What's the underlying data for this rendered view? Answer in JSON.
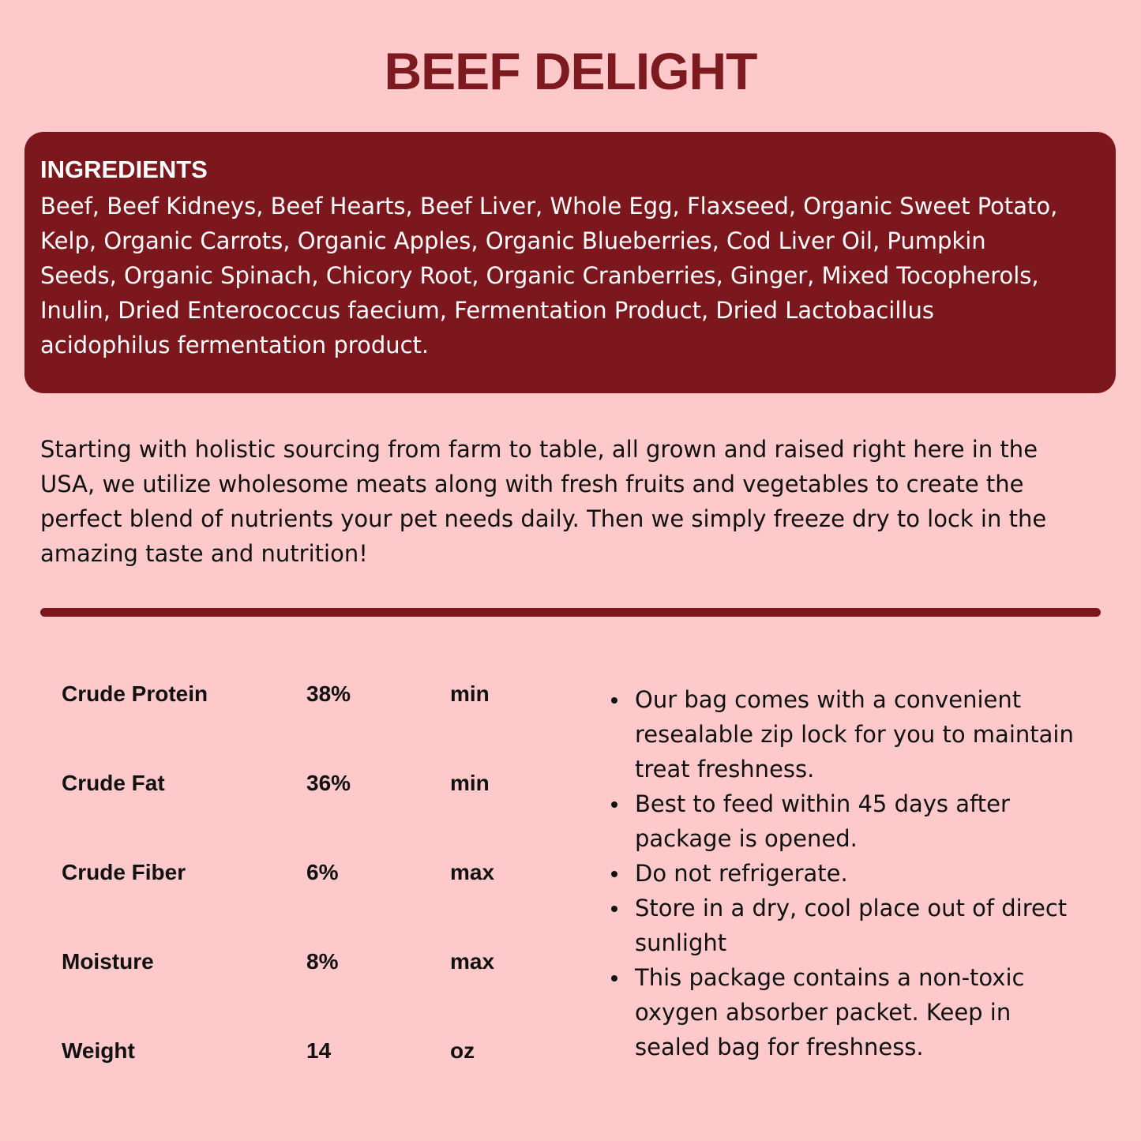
{
  "title": "BEEF DELIGHT",
  "ingredients": {
    "heading": "INGREDIENTS",
    "lines": [
      "Beef, Beef Kidneys, Beef Hearts, Beef Liver, Whole Egg, Flaxseed, Organic Sweet Potato,",
      "Kelp, Organic Carrots, Organic Apples, Organic Blueberries, Cod Liver Oil, Pumpkin",
      "Seeds, Organic Spinach, Chicory Root, Organic Cranberries, Ginger, Mixed Tocopherols,",
      "Inulin, Dried Enterococcus faecium, Fermentation Product, Dried Lactobacillus",
      "acidophilus fermentation product."
    ]
  },
  "description": [
    "Starting with holistic sourcing from farm to table, all grown and raised right here in the",
    "USA, we utilize wholesome meats along with fresh fruits and vegetables to create the",
    "perfect blend of nutrients your pet needs daily. Then we simply freeze dry to lock in the",
    "amazing taste and nutrition!"
  ],
  "analysis": [
    {
      "name": "Crude Protein",
      "value": "38%",
      "qualifier": "min"
    },
    {
      "name": "Crude Fat",
      "value": "36%",
      "qualifier": "min"
    },
    {
      "name": "Crude Fiber",
      "value": "6%",
      "qualifier": "max"
    },
    {
      "name": "Moisture",
      "value": "8%",
      "qualifier": "max"
    },
    {
      "name": "Weight",
      "value": "14",
      "qualifier": "oz"
    }
  ],
  "notes": [
    [
      "Our bag comes with a convenient",
      "resealable zip lock for you to maintain",
      "treat freshness."
    ],
    [
      "Best to feed within 45 days after",
      "package is opened."
    ],
    [
      "Do not refrigerate."
    ],
    [
      "Store in a dry, cool place out of direct",
      "sunlight"
    ],
    [
      "This package contains a non-toxic",
      "oxygen absorber packet. Keep in",
      "sealed bag for freshness."
    ]
  ],
  "colors": {
    "background": "#fdc9ca",
    "accent": "#7d171e"
  }
}
